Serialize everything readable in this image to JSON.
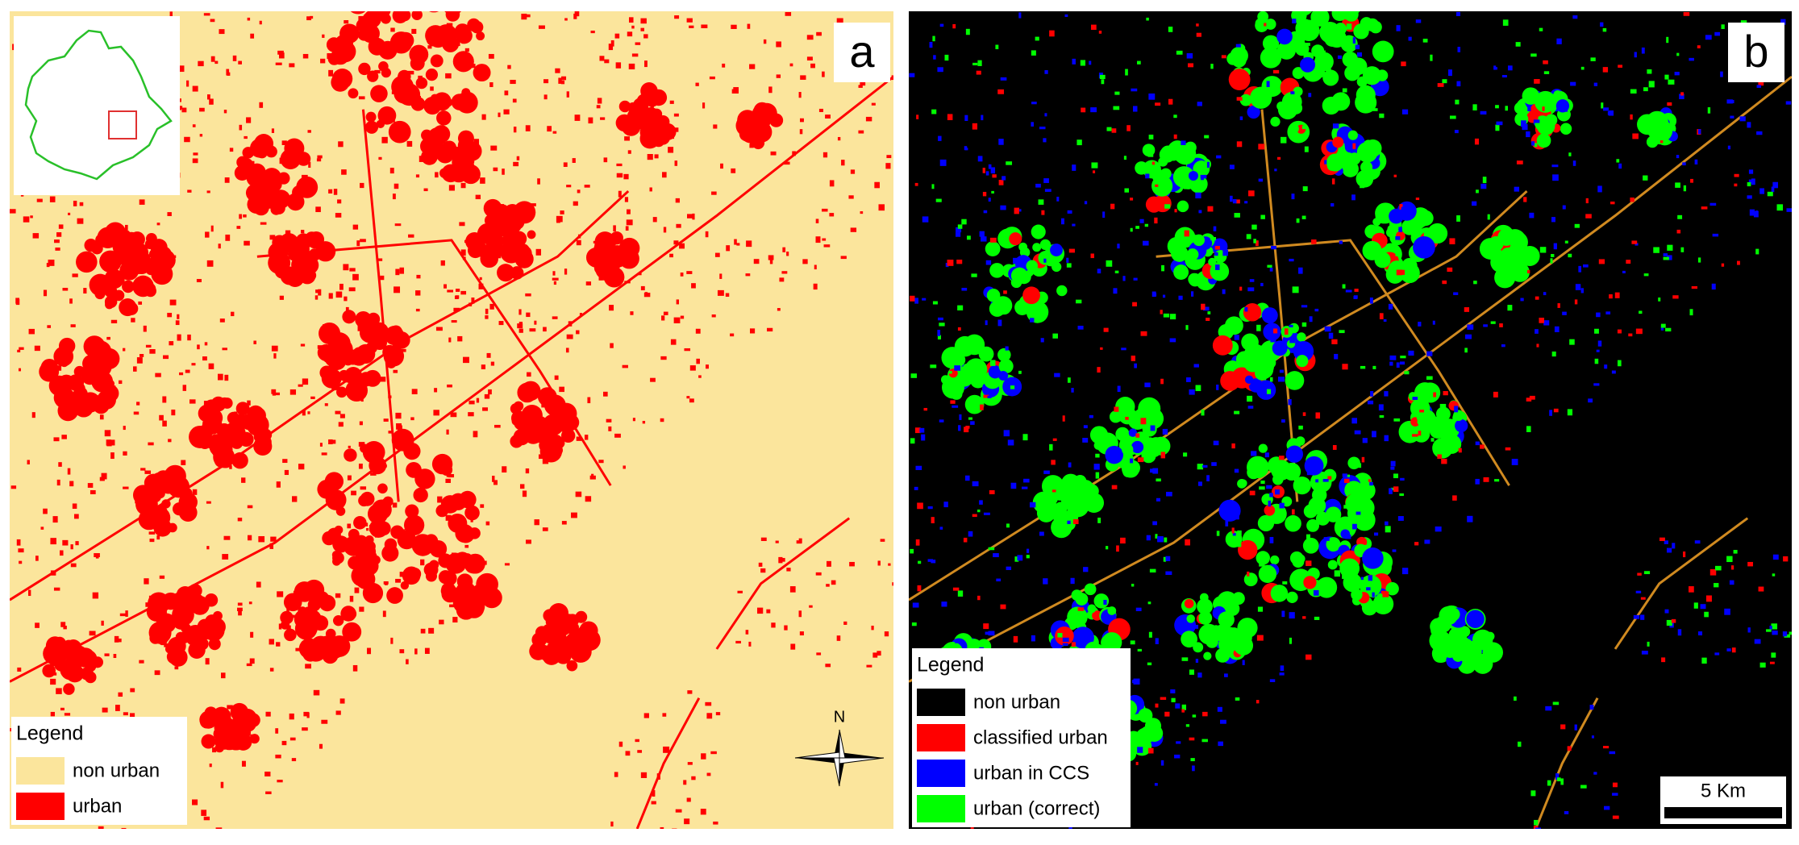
{
  "panels": [
    {
      "label": "a",
      "legend": {
        "title": "Legend",
        "items": [
          {
            "label": "non urban",
            "color": "#fbe59c"
          },
          {
            "label": "urban",
            "color": "#ff0000"
          }
        ]
      }
    },
    {
      "label": "b",
      "legend": {
        "title": "Legend",
        "items": [
          {
            "label": "non urban",
            "color": "#000000"
          },
          {
            "label": "classified urban",
            "color": "#ff0000"
          },
          {
            "label": "urban in CCS",
            "color": "#0000ff"
          },
          {
            "label": "urban (correct)",
            "color": "#00ff00"
          }
        ]
      }
    }
  ],
  "north_label": "N",
  "scale_bar": "5 Km"
}
